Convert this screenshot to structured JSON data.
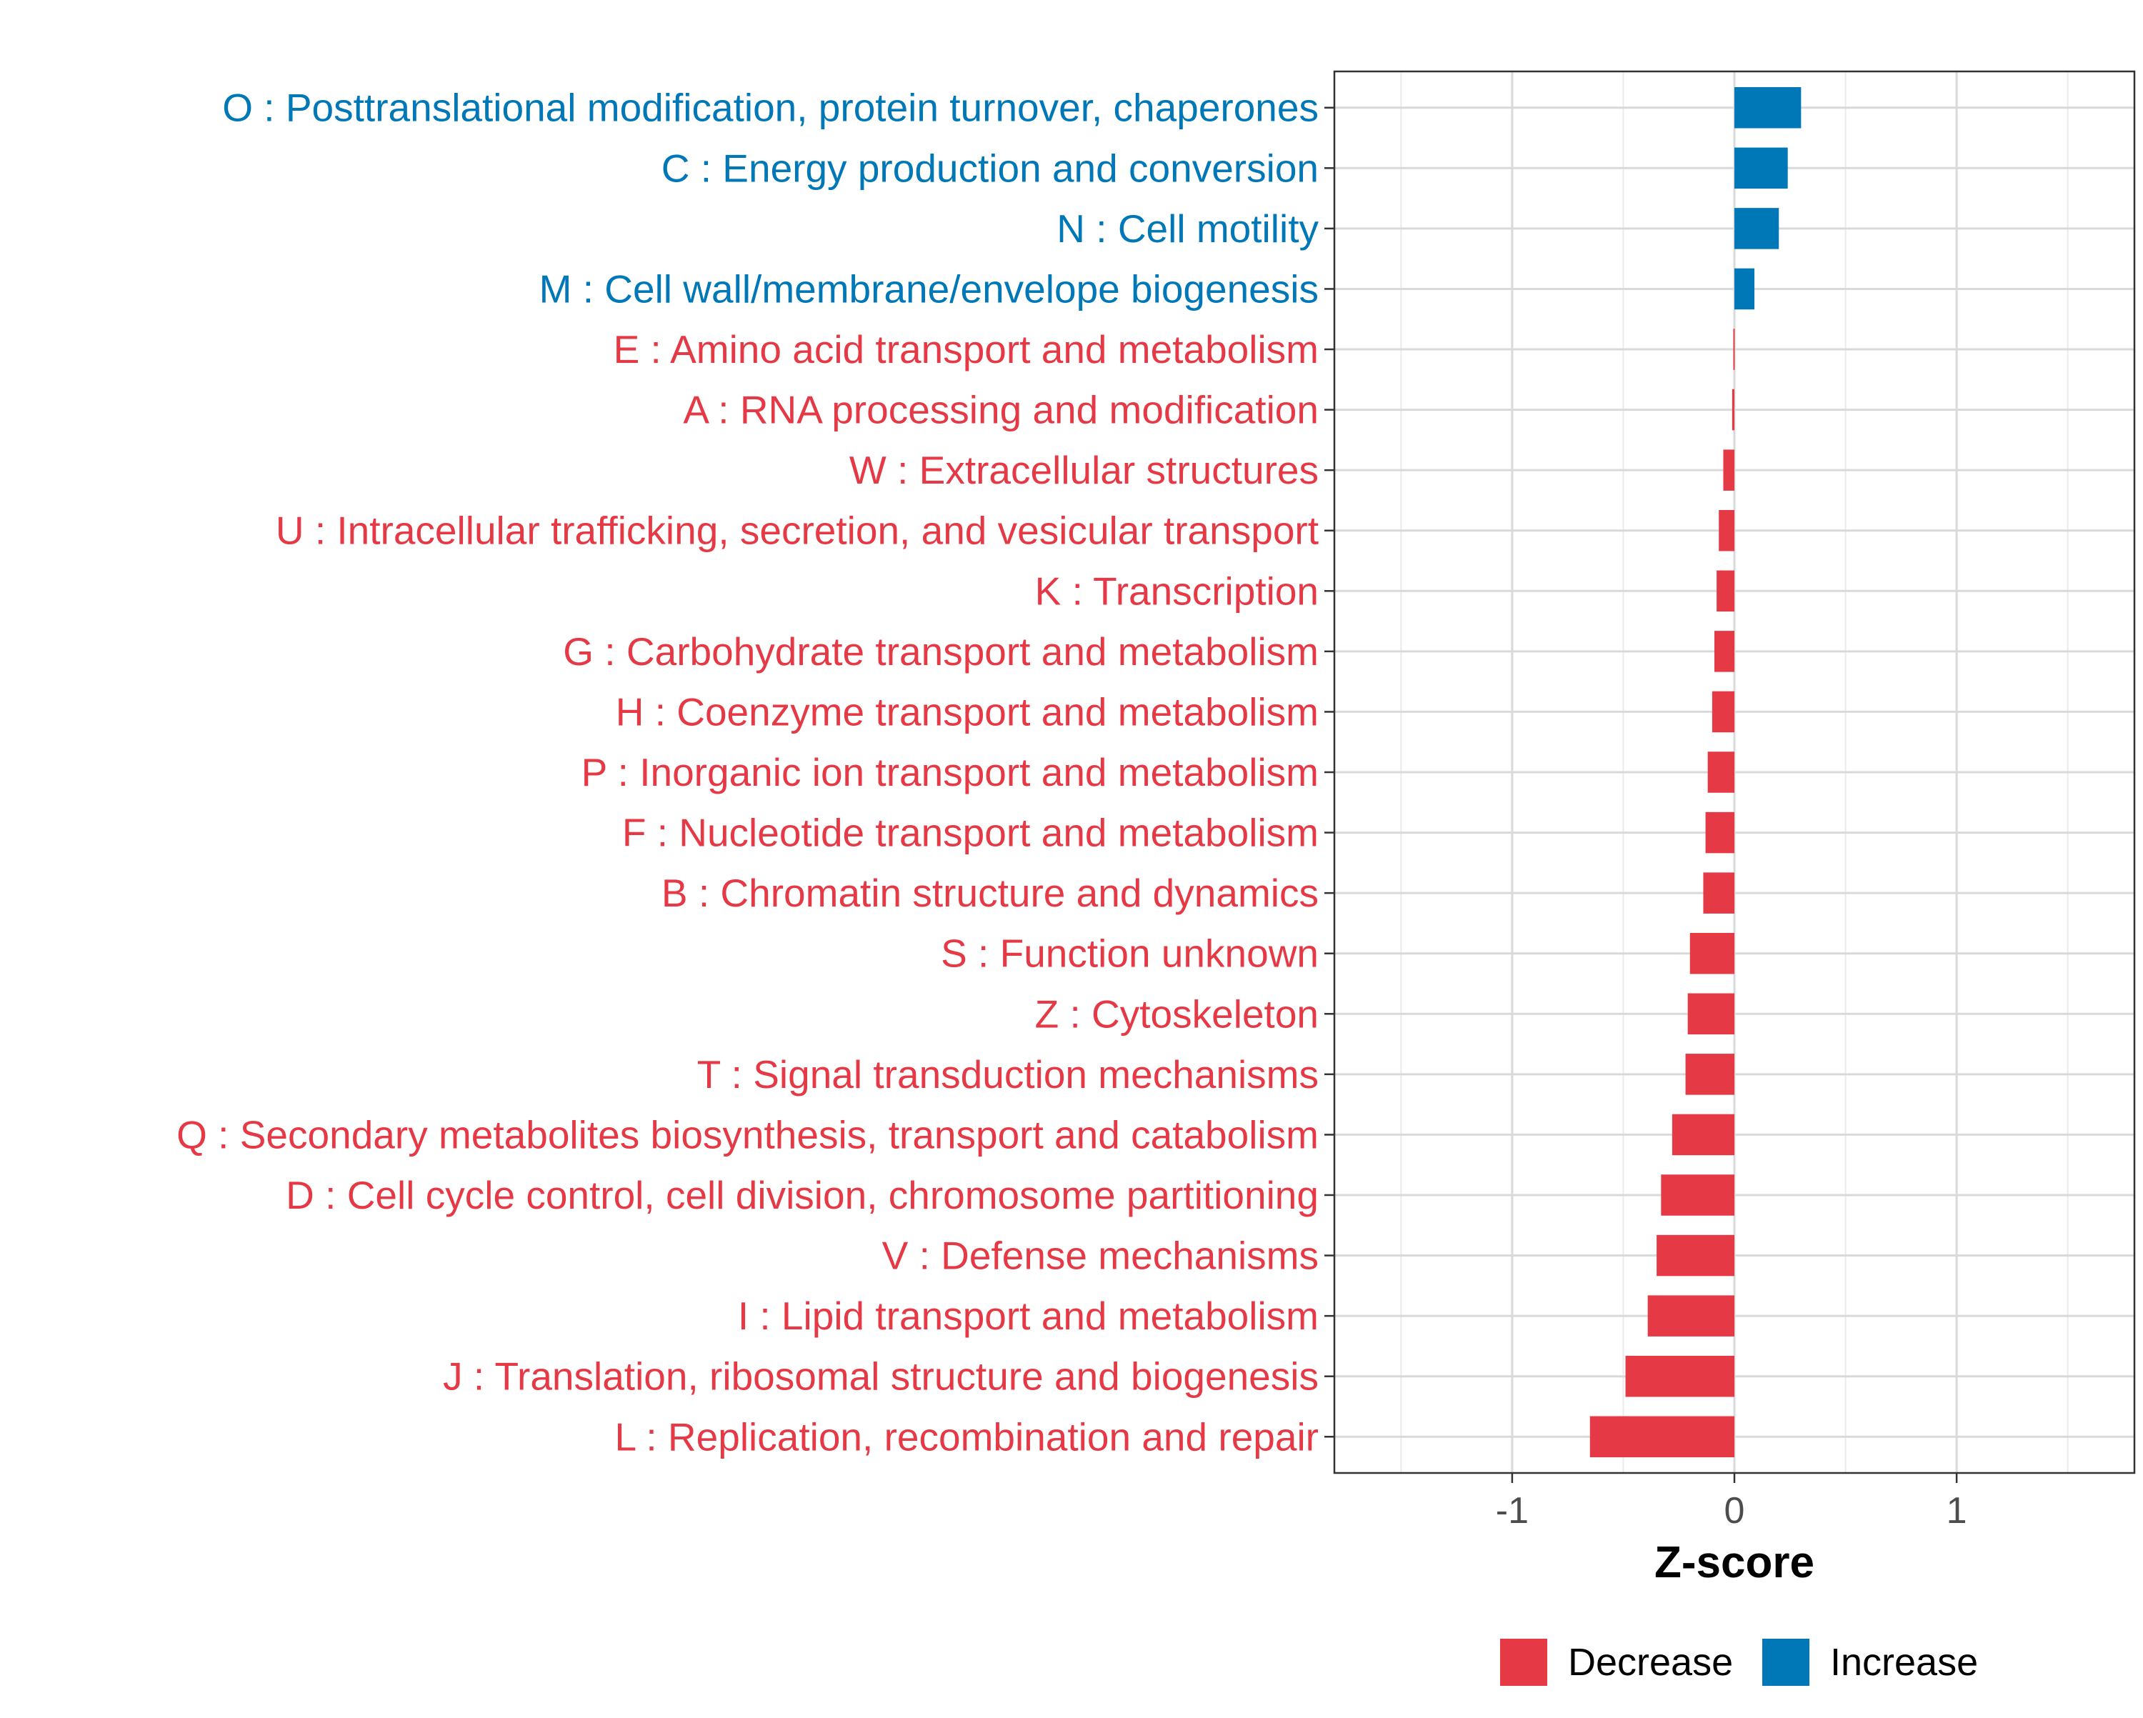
{
  "chart_data": {
    "type": "bar",
    "orientation": "horizontal",
    "title": "",
    "xlabel": "Z-score",
    "ylabel": "",
    "xlim": [
      -1.8,
      1.8
    ],
    "xticks": [
      -1,
      0,
      1
    ],
    "xtick_labels": [
      "-1",
      "0",
      "1"
    ],
    "grid": true,
    "legend_position": "bottom",
    "legend": [
      {
        "name": "Decrease",
        "color": "#E63946"
      },
      {
        "name": "Increase",
        "color": "#0077B6"
      }
    ],
    "categories": [
      "O : Posttranslational modification, protein turnover, chaperones",
      "C : Energy production and conversion",
      "N : Cell motility",
      "M : Cell wall/membrane/envelope biogenesis",
      "E : Amino acid transport and metabolism",
      "A : RNA processing and modification",
      "W : Extracellular structures",
      "U : Intracellular trafficking, secretion, and vesicular transport",
      "K : Transcription",
      "G : Carbohydrate transport and metabolism",
      "H : Coenzyme transport and metabolism",
      "P : Inorganic ion transport and metabolism",
      "F : Nucleotide transport and metabolism",
      "B : Chromatin structure and dynamics",
      "S : Function unknown",
      "Z : Cytoskeleton",
      "T : Signal transduction mechanisms",
      "Q : Secondary metabolites biosynthesis, transport and catabolism",
      "D : Cell cycle control, cell division, chromosome partitioning",
      "V : Defense mechanisms",
      "I : Lipid transport and metabolism",
      "J : Translation, ribosomal structure and biogenesis",
      "L : Replication, recombination and repair"
    ],
    "values": [
      0.3,
      0.24,
      0.2,
      0.09,
      -0.005,
      -0.01,
      -0.05,
      -0.07,
      -0.08,
      -0.09,
      -0.1,
      -0.12,
      -0.13,
      -0.14,
      -0.2,
      -0.21,
      -0.22,
      -0.28,
      -0.33,
      -0.35,
      -0.39,
      -0.49,
      -0.65
    ],
    "groups": [
      "Increase",
      "Increase",
      "Increase",
      "Increase",
      "Decrease",
      "Decrease",
      "Decrease",
      "Decrease",
      "Decrease",
      "Decrease",
      "Decrease",
      "Decrease",
      "Decrease",
      "Decrease",
      "Decrease",
      "Decrease",
      "Decrease",
      "Decrease",
      "Decrease",
      "Decrease",
      "Decrease",
      "Decrease",
      "Decrease"
    ]
  }
}
